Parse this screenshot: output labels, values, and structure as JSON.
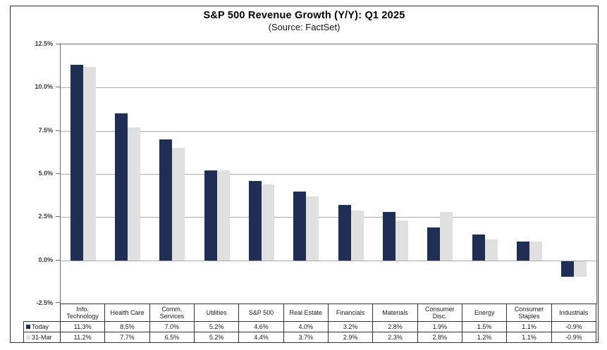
{
  "chart_data": {
    "type": "bar",
    "title": "S&P 500 Revenue Growth (Y/Y): Q1 2025",
    "subtitle": "(Source: FactSet)",
    "categories": [
      "Info. Technology",
      "Health Care",
      "Comm. Services",
      "Utilities",
      "S&P 500",
      "Real Estate",
      "Financials",
      "Materials",
      "Consumer Disc.",
      "Energy",
      "Consumer Staples",
      "Industrials"
    ],
    "series": [
      {
        "name": "Today",
        "color": "#1F2E55",
        "values": [
          11.3,
          8.5,
          7.0,
          5.2,
          4.6,
          4.0,
          3.2,
          2.8,
          1.9,
          1.5,
          1.1,
          -0.9
        ]
      },
      {
        "name": "31-Mar",
        "color": "#E0E0E0",
        "values": [
          11.2,
          7.7,
          6.5,
          5.2,
          4.4,
          3.7,
          2.9,
          2.3,
          2.8,
          1.2,
          1.1,
          -0.9
        ]
      }
    ],
    "ylim": [
      -2.5,
      12.5
    ],
    "ytick_step": 2.5,
    "ytick_labels": [
      "12.5%",
      "10.0%",
      "7.5%",
      "5.0%",
      "2.5%",
      "0.0%",
      "-2.5%"
    ],
    "grid": true,
    "legend_position": "table-rows-below-chart",
    "value_suffix": "%",
    "value_decimals": 1
  },
  "colors": {
    "bar_today": "#1F2E55",
    "bar_31mar": "#E0E0E0",
    "gridline": "#ABABAB",
    "plot_border": "#6E6E6E",
    "table_border": "#333333",
    "frame_border": "#2E2E2E"
  }
}
